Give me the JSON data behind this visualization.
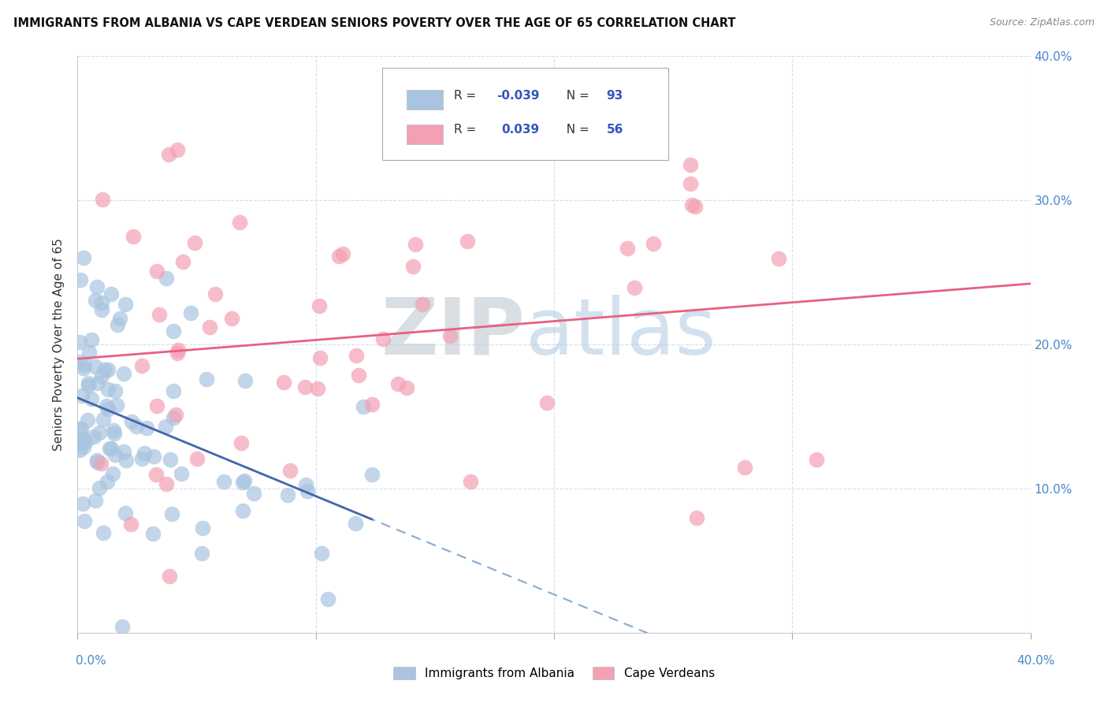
{
  "title": "IMMIGRANTS FROM ALBANIA VS CAPE VERDEAN SENIORS POVERTY OVER THE AGE OF 65 CORRELATION CHART",
  "source": "Source: ZipAtlas.com",
  "ylabel": "Seniors Poverty Over the Age of 65",
  "xlim": [
    0,
    0.4
  ],
  "ylim": [
    0,
    0.4
  ],
  "albania_R": -0.039,
  "albania_N": 93,
  "capeverde_R": 0.039,
  "capeverde_N": 56,
  "albania_color": "#a8c4e0",
  "capeverde_color": "#f4a0b4",
  "albania_line_color": "#4466aa",
  "capeverde_line_color": "#e86080",
  "albania_dashed_color": "#88aacc",
  "watermark_zip": "ZIP",
  "watermark_atlas": "atlas",
  "legend_text_color": "#3355bb",
  "legend_N_color": "#3355bb",
  "right_tick_color": "#4488cc",
  "bottom_label_color": "#4488cc"
}
